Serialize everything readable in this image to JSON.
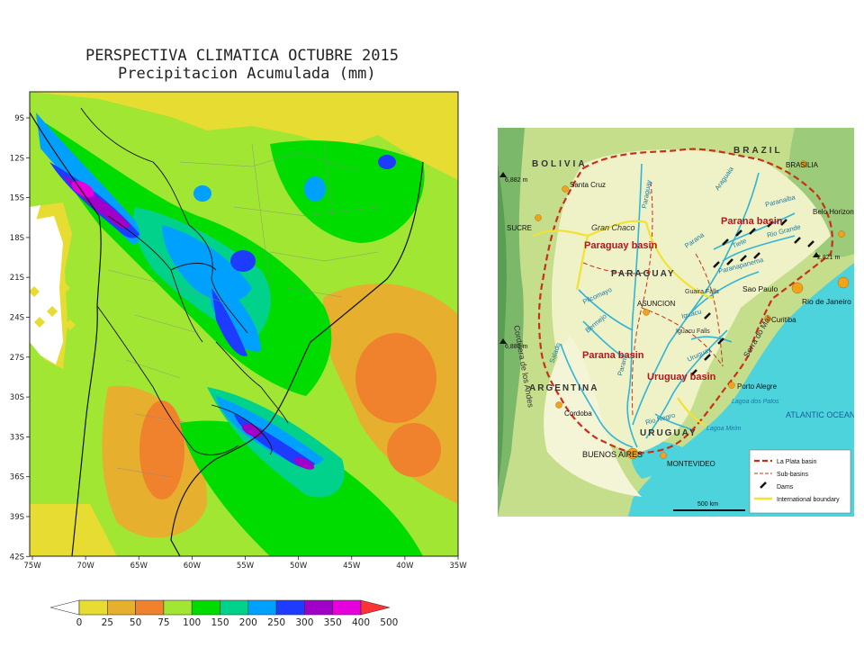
{
  "precip": {
    "title_line1": "PERSPECTIVA CLIMATICA OCTUBRE 2015",
    "title_line2": "Precipitacion Acumulada (mm)",
    "lat_ticks": [
      "9S",
      "12S",
      "15S",
      "18S",
      "21S",
      "24S",
      "27S",
      "30S",
      "33S",
      "36S",
      "39S",
      "42S"
    ],
    "lon_ticks": [
      "75W",
      "70W",
      "65W",
      "60W",
      "55W",
      "50W",
      "45W",
      "40W",
      "35W"
    ],
    "colorbar": {
      "levels": [
        "0",
        "25",
        "50",
        "75",
        "100",
        "150",
        "200",
        "250",
        "300",
        "350",
        "400",
        "500"
      ],
      "colors": [
        "#ffffff",
        "#e6dc32",
        "#e6af2d",
        "#f0822d",
        "#a0e632",
        "#00dc00",
        "#00d28c",
        "#00a0ff",
        "#1e3cff",
        "#a000c8",
        "#e600dc",
        "#ff3333"
      ]
    }
  },
  "basin": {
    "countries": [
      "BOLIVIA",
      "BRAZIL",
      "PARAGUAY",
      "ARGENTINA",
      "URUGUAY"
    ],
    "basins": [
      "Paraguay basin",
      "Parana basin",
      "Parana basin",
      "Uruguay basin"
    ],
    "cities": [
      "BRASILIA",
      "Santa Cruz",
      "SUCRE",
      "Belo Horizonte",
      "ASUNCION",
      "Sao Paulo",
      "Rio de Janeiro",
      "Curitiba",
      "Cordoba",
      "Porto Alegre",
      "BUENOS AIRES",
      "MONTEVIDEO"
    ],
    "rivers": [
      "Paraguay",
      "Araguaia",
      "Paranaiba",
      "Rio Grande",
      "Parana",
      "Tiete",
      "Paranapanema",
      "Pilcomayo",
      "Bermejo",
      "Salado",
      "Iguacu",
      "Uruguay",
      "Rio Negro",
      "Parana"
    ],
    "features": [
      "Gran Chaco",
      "Cordillera de los Andes",
      "Serra do Mar",
      "Guaira Falls",
      "Iguacu Falls",
      "Lagoa dos Patos",
      "Lagoa Mirim",
      "ATLANTIC OCEAN"
    ],
    "elevations": [
      "6,882 m",
      "6,880 m",
      "2,821 m"
    ],
    "scale": "500 km",
    "legend": [
      "La Plata basin",
      "Sub-basins",
      "Dams",
      "International boundary"
    ]
  }
}
